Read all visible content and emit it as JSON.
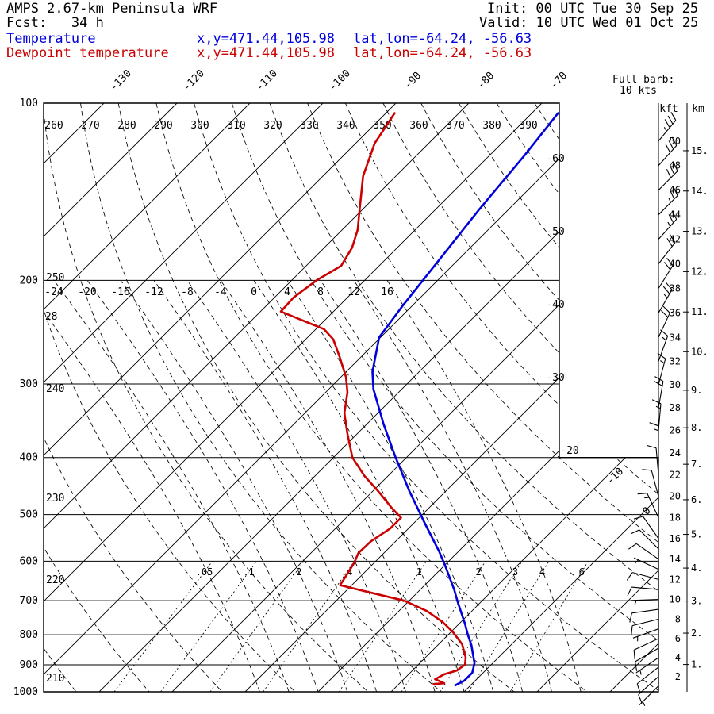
{
  "header": {
    "title": "AMPS 2.67-km Peninsula WRF",
    "fcst_line": "Fcst:   34 h",
    "init_line": "Init: 00 UTC Tue 30 Sep 25",
    "valid_line": "Valid: 10 UTC Wed 01 Oct 25",
    "temperature_label": "Temperature",
    "dewpoint_label": "Dewpoint temperature",
    "temperature_xy": "x,y=471.44,105.98",
    "temperature_latlon": "lat,lon=-64.24, -56.63",
    "dewpoint_xy": "x,y=471.44,105.98",
    "dewpoint_latlon": "lat,lon=-64.24, -56.63"
  },
  "legend": {
    "full_barb_line1": "Full barb:",
    "full_barb_line2": "10 kts"
  },
  "colors": {
    "temperature": "#0000dd",
    "dewpoint": "#cc0000",
    "grid": "#000000",
    "background": "#ffffff"
  },
  "axis": {
    "pressure_ticks": [
      100,
      200,
      300,
      400,
      500,
      600,
      700,
      800,
      900,
      1000
    ],
    "kft_header": "kft",
    "km_header": "km",
    "kft_ticks": [
      50,
      48,
      46,
      44,
      42,
      40,
      38,
      36,
      34,
      32,
      30,
      28,
      26,
      24,
      22,
      20,
      18,
      16,
      14,
      12,
      10,
      8,
      6,
      4,
      2
    ],
    "km_ticks": [
      15,
      14,
      13,
      12,
      11,
      10,
      9,
      8,
      7,
      6,
      5,
      4,
      3,
      2,
      1
    ],
    "top_isotherm_labels": [
      -130,
      -120,
      -110,
      -100,
      -90,
      -80,
      -70
    ],
    "right_isotherm_labels": [
      -60,
      -50,
      -40,
      -30
    ],
    "corner_isotherm_labels": [
      -20,
      -10,
      0
    ],
    "theta_top_labels": [
      260,
      270,
      280,
      290,
      300,
      310,
      320,
      330,
      340,
      350,
      360,
      370,
      380,
      390
    ],
    "theta_left_labels": [
      250,
      240,
      230,
      220,
      210
    ],
    "thetaw_200_labels": [
      -24,
      -20,
      -16,
      -12,
      -8,
      -4,
      0,
      4,
      8,
      12,
      16
    ],
    "thetaw_left_label": "-28",
    "mixing_ratio_labels": [
      ".05",
      ".1",
      ".2",
      ".4",
      "1",
      "2",
      "3",
      "4",
      "6"
    ]
  },
  "chart_data": {
    "type": "skewt-logp",
    "pressure_axis_hPa": [
      100,
      1000
    ],
    "pressure_log_scale": true,
    "isotherm_step_C": 10,
    "isotherm_skew_deg": 45,
    "temperature_profile": [
      [
        104,
        -66.4
      ],
      [
        123,
        -65.2
      ],
      [
        152,
        -64.0
      ],
      [
        187,
        -62.5
      ],
      [
        221,
        -61.3
      ],
      [
        250,
        -60.2
      ],
      [
        286,
        -56.4
      ],
      [
        306,
        -53.9
      ],
      [
        351,
        -47.7
      ],
      [
        399,
        -41.6
      ],
      [
        457,
        -34.9
      ],
      [
        518,
        -28.4
      ],
      [
        577,
        -22.7
      ],
      [
        609,
        -20.0
      ],
      [
        670,
        -15.4
      ],
      [
        702,
        -13.3
      ],
      [
        768,
        -9.1
      ],
      [
        800,
        -7.3
      ],
      [
        833,
        -5.4
      ],
      [
        894,
        -2.5
      ],
      [
        928,
        -1.5
      ],
      [
        957,
        -1.5
      ],
      [
        975,
        -2.1
      ]
    ],
    "dewpoint_profile": [
      [
        104,
        -88.8
      ],
      [
        117,
        -87.4
      ],
      [
        133,
        -84.5
      ],
      [
        153,
        -80.1
      ],
      [
        164,
        -77.9
      ],
      [
        176,
        -76.2
      ],
      [
        189,
        -75.2
      ],
      [
        200,
        -76.6
      ],
      [
        214,
        -77.4
      ],
      [
        226,
        -77.2
      ],
      [
        242,
        -68.9
      ],
      [
        252,
        -66.2
      ],
      [
        270,
        -62.9
      ],
      [
        292,
        -59.3
      ],
      [
        310,
        -57.0
      ],
      [
        336,
        -54.6
      ],
      [
        363,
        -51.5
      ],
      [
        400,
        -47.4
      ],
      [
        430,
        -43.2
      ],
      [
        458,
        -39.0
      ],
      [
        488,
        -35.0
      ],
      [
        506,
        -32.5
      ],
      [
        528,
        -32.5
      ],
      [
        555,
        -33.4
      ],
      [
        581,
        -33.5
      ],
      [
        605,
        -32.7
      ],
      [
        633,
        -32.1
      ],
      [
        659,
        -31.6
      ],
      [
        680,
        -26.0
      ],
      [
        700,
        -20.7
      ],
      [
        729,
        -16.2
      ],
      [
        761,
        -12.5
      ],
      [
        793,
        -9.6
      ],
      [
        830,
        -6.8
      ],
      [
        874,
        -4.5
      ],
      [
        899,
        -3.6
      ],
      [
        920,
        -3.9
      ],
      [
        933,
        -5.1
      ],
      [
        952,
        -5.7
      ],
      [
        967,
        -3.9
      ],
      [
        970,
        -5.2
      ]
    ],
    "winds": [
      {
        "kft": 50,
        "spd_kts": 35,
        "dir_deg": 40
      },
      {
        "kft": 48,
        "spd_kts": 30,
        "dir_deg": 42
      },
      {
        "kft": 46,
        "spd_kts": 30,
        "dir_deg": 45
      },
      {
        "kft": 44,
        "spd_kts": 25,
        "dir_deg": 45
      },
      {
        "kft": 42,
        "spd_kts": 25,
        "dir_deg": 42
      },
      {
        "kft": 40,
        "spd_kts": 20,
        "dir_deg": 38
      },
      {
        "kft": 38,
        "spd_kts": 20,
        "dir_deg": 32
      },
      {
        "kft": 36,
        "spd_kts": 25,
        "dir_deg": 30
      },
      {
        "kft": 34,
        "spd_kts": 20,
        "dir_deg": 25
      },
      {
        "kft": 32,
        "spd_kts": 15,
        "dir_deg": 20
      },
      {
        "kft": 30,
        "spd_kts": 15,
        "dir_deg": 15
      },
      {
        "kft": 28,
        "spd_kts": 20,
        "dir_deg": 10
      },
      {
        "kft": 26,
        "spd_kts": 15,
        "dir_deg": 5
      },
      {
        "kft": 24,
        "spd_kts": 15,
        "dir_deg": 0
      },
      {
        "kft": 22,
        "spd_kts": 10,
        "dir_deg": 355
      },
      {
        "kft": 20,
        "spd_kts": 10,
        "dir_deg": 345
      },
      {
        "kft": 18,
        "spd_kts": 15,
        "dir_deg": 335
      },
      {
        "kft": 16,
        "spd_kts": 10,
        "dir_deg": 325
      },
      {
        "kft": 15,
        "spd_kts": 10,
        "dir_deg": 315
      },
      {
        "kft": 14,
        "spd_kts": 10,
        "dir_deg": 305
      },
      {
        "kft": 13,
        "spd_kts": 5,
        "dir_deg": 295
      },
      {
        "kft": 12,
        "spd_kts": 10,
        "dir_deg": 285
      },
      {
        "kft": 11,
        "spd_kts": 10,
        "dir_deg": 275
      },
      {
        "kft": 10,
        "spd_kts": 5,
        "dir_deg": 268
      },
      {
        "kft": 9,
        "spd_kts": 10,
        "dir_deg": 262
      },
      {
        "kft": 8,
        "spd_kts": 10,
        "dir_deg": 256
      },
      {
        "kft": 7,
        "spd_kts": 5,
        "dir_deg": 250
      },
      {
        "kft": 6,
        "spd_kts": 10,
        "dir_deg": 245
      },
      {
        "kft": 5,
        "spd_kts": 10,
        "dir_deg": 240
      },
      {
        "kft": 4,
        "spd_kts": 5,
        "dir_deg": 236
      },
      {
        "kft": 3,
        "spd_kts": 10,
        "dir_deg": 232
      },
      {
        "kft": 2,
        "spd_kts": 10,
        "dir_deg": 228
      },
      {
        "kft": 1,
        "spd_kts": 5,
        "dir_deg": 225
      }
    ]
  }
}
